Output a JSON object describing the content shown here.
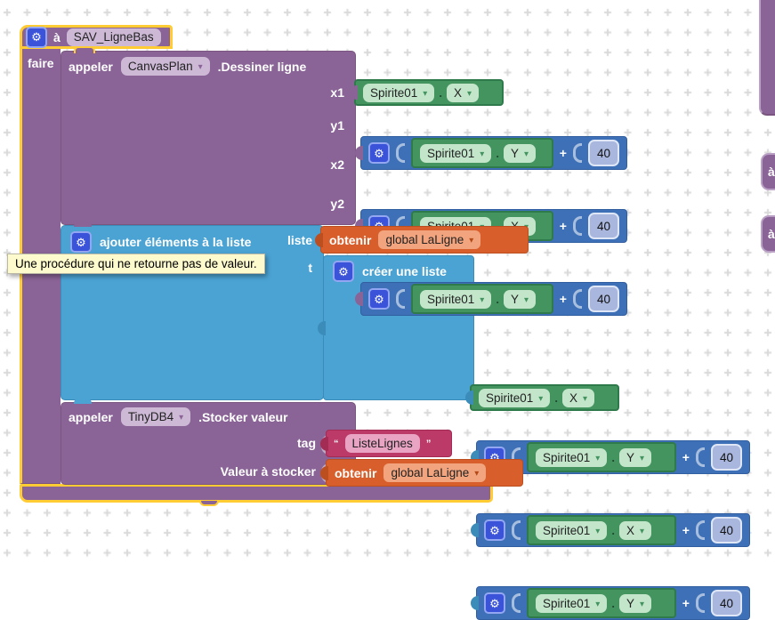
{
  "colors": {
    "procedure": "#8a6496",
    "procedure_field": "#cdb9d6",
    "selection_outline": "#ffcc33",
    "list_block": "#4ba3d3",
    "math_block": "#3e70b7",
    "component_block": "#44945f",
    "component_field": "#c3e6cb",
    "variable_block": "#d85f2b",
    "variable_field": "#f2a47e",
    "text_block": "#bb3a67",
    "text_field": "#e9a4c4",
    "number_field": "#a9b7de",
    "gear_button": "#3a53d9",
    "grid_mark": "#d9d9d9",
    "tooltip_bg": "#fdfacd"
  },
  "strings": {
    "dot": "."
  },
  "procedure": {
    "to_label": "à",
    "name": "SAV_LigneBas",
    "do_label": "faire",
    "tooltip": "Une procédure qui ne retourne pas de valeur."
  },
  "canvas_call": {
    "call_label": "appeler",
    "component": "CanvasPlan",
    "method": ".Dessiner ligne",
    "args": [
      {
        "label": "x1",
        "kind": "getter",
        "component": "Spirite01",
        "prop": "X"
      },
      {
        "label": "y1",
        "kind": "sum",
        "component": "Spirite01",
        "prop": "Y",
        "op": "+",
        "addend": "40"
      },
      {
        "label": "x2",
        "kind": "sum",
        "component": "Spirite01",
        "prop": "X",
        "op": "+",
        "addend": "40"
      },
      {
        "label": "y2",
        "kind": "sum",
        "component": "Spirite01",
        "prop": "Y",
        "op": "+",
        "addend": "40"
      }
    ]
  },
  "list_add": {
    "label": "ajouter éléments à la liste",
    "arg_liste_label": "liste",
    "arg_element_visible_text": "t",
    "liste_value": {
      "get_label": "obtenir",
      "variable": "global LaLigne"
    }
  },
  "make_list": {
    "label": "créer une liste",
    "items": [
      {
        "kind": "getter",
        "component": "Spirite01",
        "prop": "X"
      },
      {
        "kind": "sum",
        "component": "Spirite01",
        "prop": "Y",
        "op": "+",
        "addend": "40"
      },
      {
        "kind": "sum",
        "component": "Spirite01",
        "prop": "X",
        "op": "+",
        "addend": "40"
      },
      {
        "kind": "sum",
        "component": "Spirite01",
        "prop": "Y",
        "op": "+",
        "addend": "40"
      }
    ]
  },
  "tinydb_call": {
    "call_label": "appeler",
    "component": "TinyDB4",
    "method": ".Stocker valeur",
    "tag_label": "tag",
    "tag_value": {
      "open_quote": "“",
      "text": "ListeLignes",
      "close_quote": "”"
    },
    "value_label": "Valeur à stocker",
    "value": {
      "get_label": "obtenir",
      "variable": "global LaLigne"
    }
  },
  "offscreen_blocks": {
    "block1_label": "à",
    "block2_label": "à"
  }
}
